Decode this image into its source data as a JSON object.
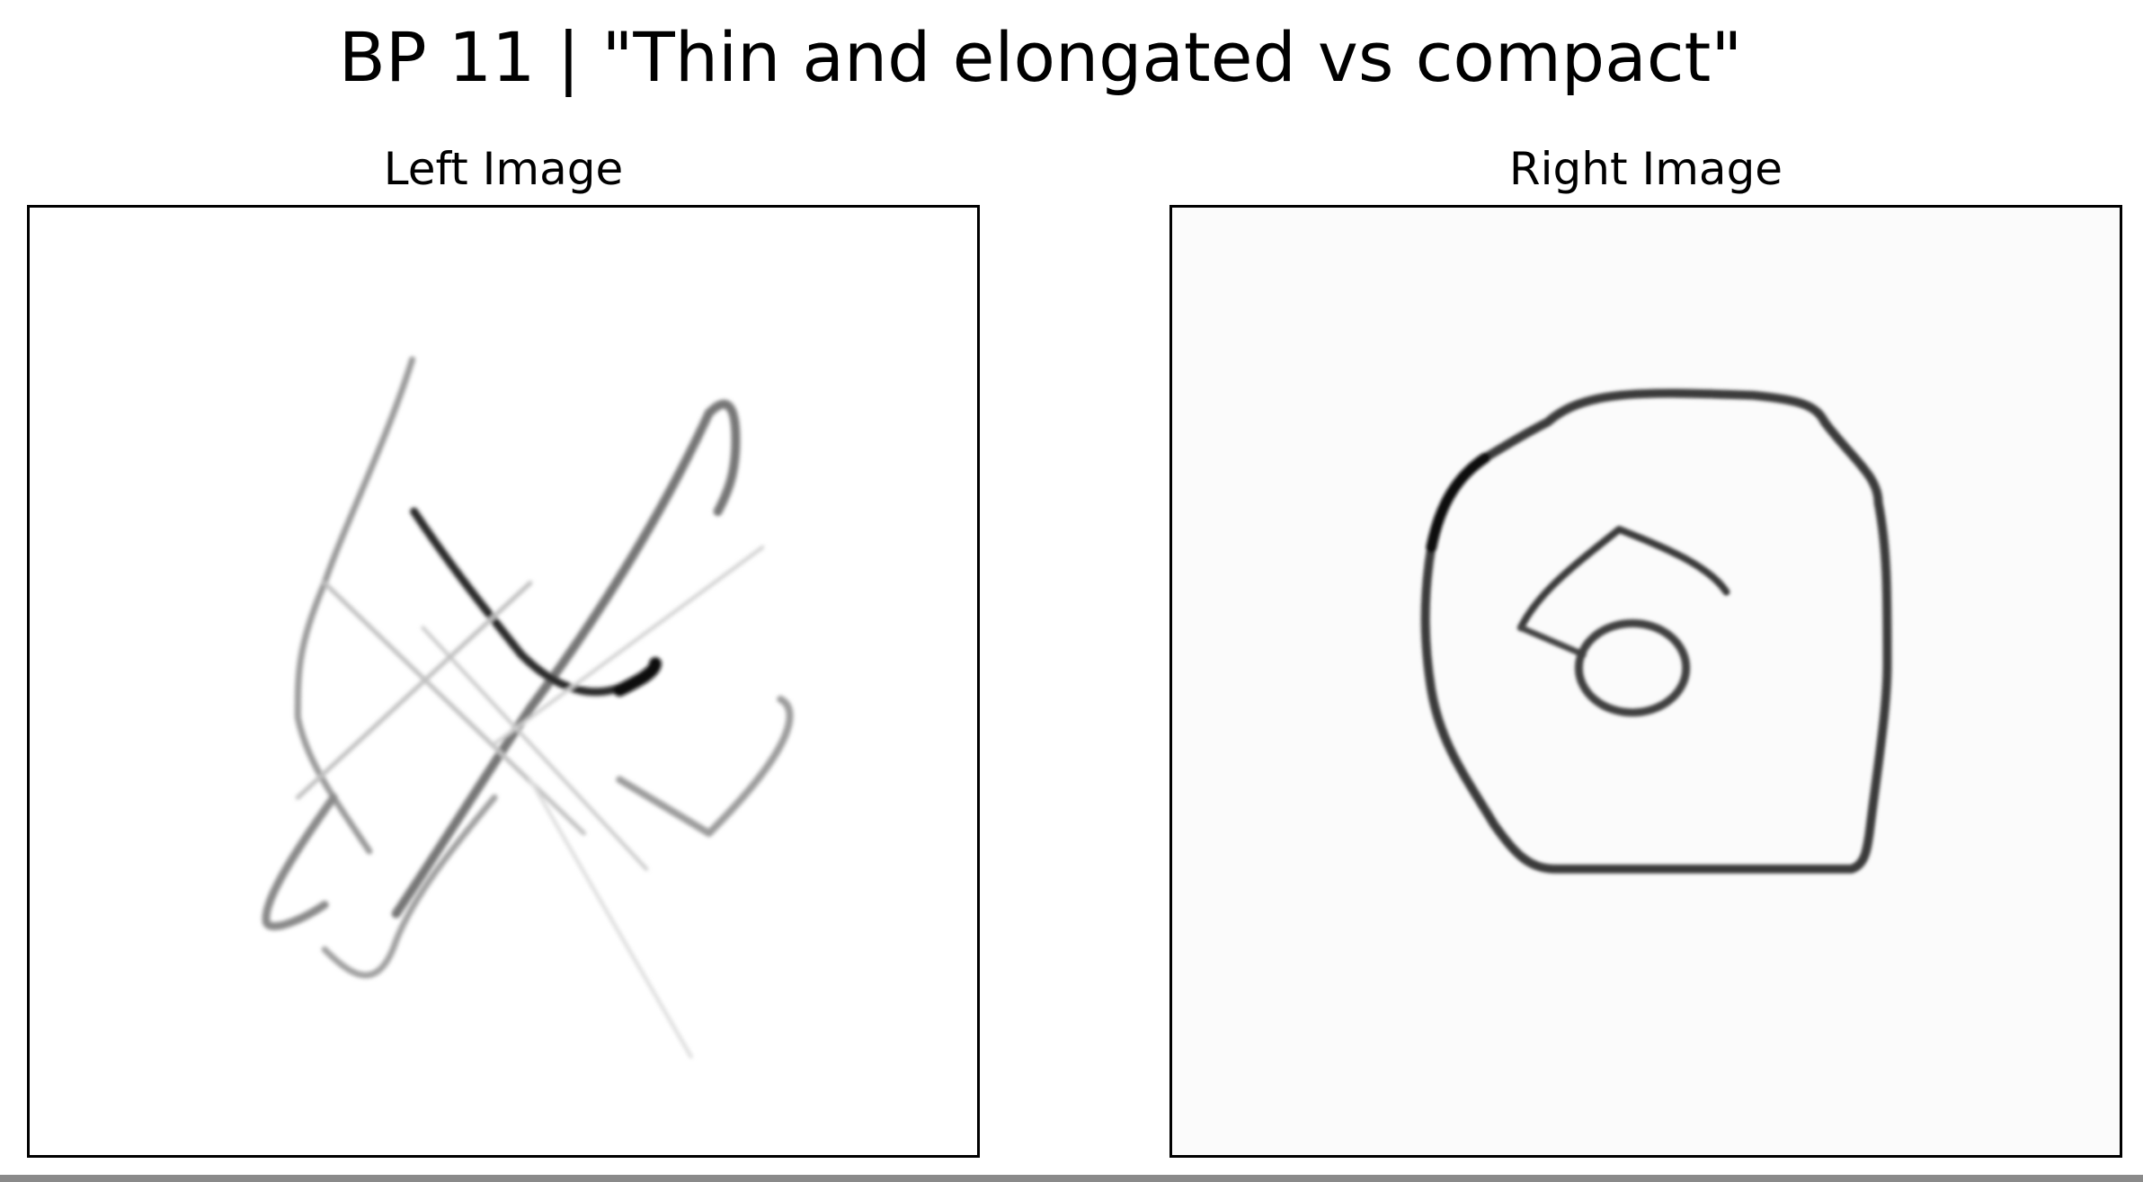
{
  "figure": {
    "title": "BP 11 | \"Thin and elongated vs compact\""
  },
  "panels": {
    "left": {
      "title": "Left Image",
      "description_shape": "thin-elongated-strokes"
    },
    "right": {
      "title": "Right Image",
      "description_shape": "compact-closed-shape"
    }
  },
  "colors": {
    "background": "#ffffff",
    "stroke_dark": "#1a1a1a",
    "stroke_mid": "#555555",
    "stroke_light": "#b0b0b0",
    "border": "#000000"
  }
}
